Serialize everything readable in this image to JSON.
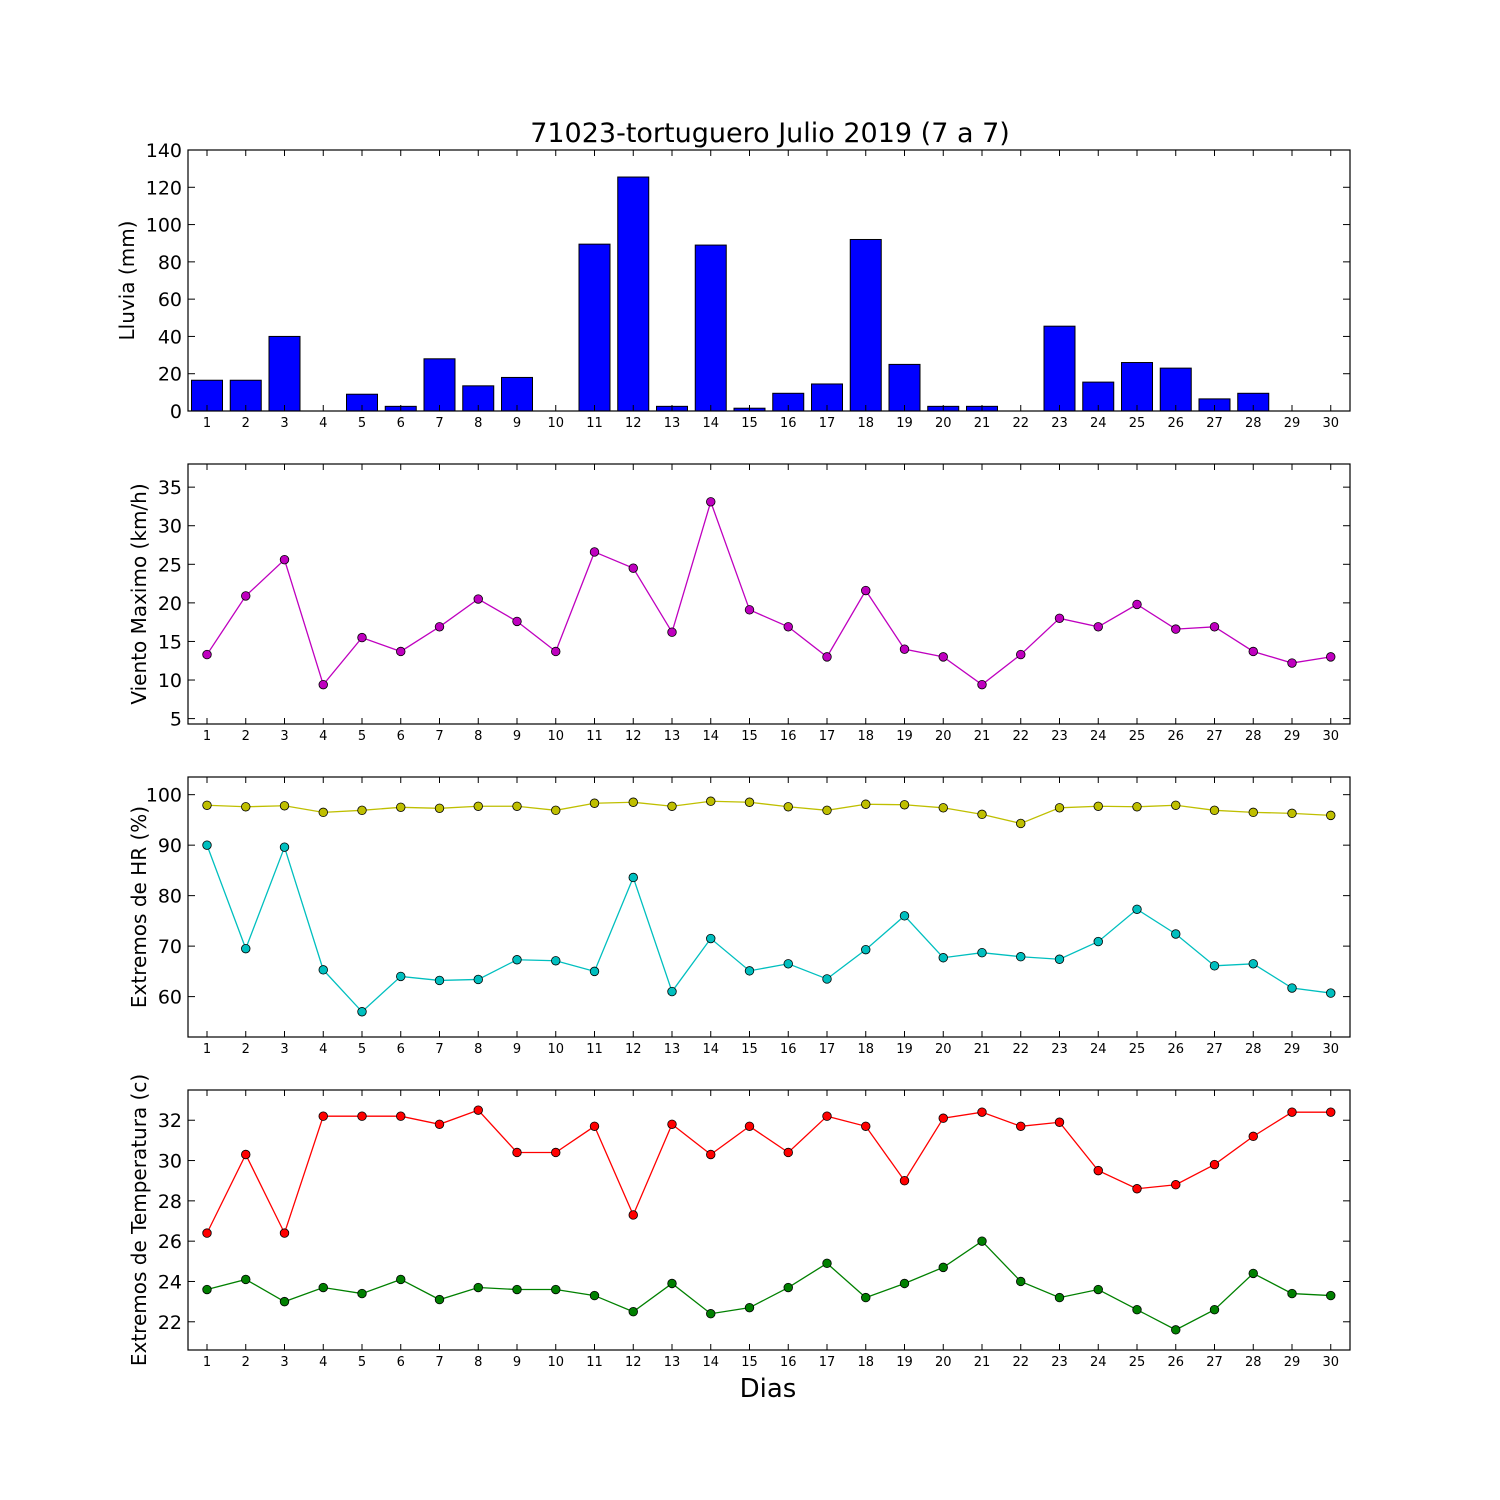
{
  "figure": {
    "title": "71023-tortuguero Julio 2019  (7 a 7)",
    "xlabel": "Dias"
  },
  "chart_data": [
    {
      "type": "bar",
      "ylabel": "Lluvia (mm)",
      "ylim": [
        0,
        140
      ],
      "yticks": [
        0,
        20,
        40,
        60,
        80,
        100,
        120,
        140
      ],
      "categories": [
        1,
        2,
        3,
        4,
        5,
        6,
        7,
        8,
        9,
        10,
        11,
        12,
        13,
        14,
        15,
        16,
        17,
        18,
        19,
        20,
        21,
        22,
        23,
        24,
        25,
        26,
        27,
        28,
        29,
        30
      ],
      "series": [
        {
          "color": "#0000ff",
          "values": [
            16.5,
            16.5,
            40.0,
            0.0,
            9.0,
            2.5,
            28.0,
            13.5,
            18.0,
            0.0,
            89.5,
            125.5,
            2.5,
            89.0,
            1.5,
            9.5,
            14.5,
            92.0,
            25.0,
            2.5,
            2.5,
            0.0,
            45.5,
            15.5,
            26.0,
            23.0,
            6.5,
            9.5,
            0.0,
            0.0
          ]
        }
      ],
      "grid": false
    },
    {
      "type": "line",
      "ylabel": "Viento Maximo (km/h)",
      "ylim": [
        4.3,
        38
      ],
      "yticks": [
        5,
        10,
        15,
        20,
        25,
        30,
        35
      ],
      "categories": [
        1,
        2,
        3,
        4,
        5,
        6,
        7,
        8,
        9,
        10,
        11,
        12,
        13,
        14,
        15,
        16,
        17,
        18,
        19,
        20,
        21,
        22,
        23,
        24,
        25,
        26,
        27,
        28,
        29,
        30
      ],
      "series": [
        {
          "color": "#bf00bf",
          "values": [
            13.3,
            20.9,
            25.6,
            9.4,
            15.5,
            13.7,
            16.9,
            20.5,
            17.6,
            13.7,
            26.6,
            24.5,
            16.2,
            33.1,
            19.1,
            16.9,
            13.0,
            21.6,
            14.0,
            13.0,
            9.4,
            13.3,
            18.0,
            16.9,
            19.8,
            16.6,
            16.9,
            13.7,
            12.2,
            13.0
          ]
        }
      ],
      "grid": false
    },
    {
      "type": "line",
      "ylabel": "Extremos de HR (%)",
      "ylim": [
        52,
        103.5
      ],
      "yticks": [
        60,
        70,
        80,
        90,
        100
      ],
      "categories": [
        1,
        2,
        3,
        4,
        5,
        6,
        7,
        8,
        9,
        10,
        11,
        12,
        13,
        14,
        15,
        16,
        17,
        18,
        19,
        20,
        21,
        22,
        23,
        24,
        25,
        26,
        27,
        28,
        29,
        30
      ],
      "series": [
        {
          "color": "#bfbf00",
          "values": [
            97.9,
            97.6,
            97.8,
            96.5,
            96.9,
            97.5,
            97.3,
            97.7,
            97.7,
            96.9,
            98.3,
            98.5,
            97.7,
            98.7,
            98.5,
            97.6,
            96.9,
            98.1,
            98.0,
            97.4,
            96.1,
            94.3,
            97.4,
            97.7,
            97.6,
            97.9,
            96.9,
            96.5,
            96.3,
            95.9
          ]
        },
        {
          "color": "#00bfbf",
          "values": [
            90.0,
            69.5,
            89.6,
            65.3,
            57.0,
            64.0,
            63.2,
            63.4,
            67.3,
            67.1,
            65.0,
            83.6,
            61.0,
            71.5,
            65.1,
            66.5,
            63.5,
            69.3,
            76.0,
            67.7,
            68.7,
            67.9,
            67.4,
            70.9,
            77.3,
            72.4,
            66.1,
            66.5,
            61.7,
            60.7
          ]
        }
      ],
      "grid": false
    },
    {
      "type": "line",
      "ylabel": "Extremos de Temperatura (c)",
      "ylim": [
        20.6,
        33.5
      ],
      "yticks": [
        22,
        24,
        26,
        28,
        30,
        32
      ],
      "categories": [
        1,
        2,
        3,
        4,
        5,
        6,
        7,
        8,
        9,
        10,
        11,
        12,
        13,
        14,
        15,
        16,
        17,
        18,
        19,
        20,
        21,
        22,
        23,
        24,
        25,
        26,
        27,
        28,
        29,
        30
      ],
      "series": [
        {
          "color": "#ff0000",
          "values": [
            26.4,
            30.3,
            26.4,
            32.2,
            32.2,
            32.2,
            31.8,
            32.5,
            30.4,
            30.4,
            31.7,
            27.3,
            31.8,
            30.3,
            31.7,
            30.4,
            32.2,
            31.7,
            29.0,
            32.1,
            32.4,
            31.7,
            31.9,
            29.5,
            28.6,
            28.8,
            29.8,
            31.2,
            32.4,
            32.4
          ]
        },
        {
          "color": "#008000",
          "values": [
            23.6,
            24.1,
            23.0,
            23.7,
            23.4,
            24.1,
            23.1,
            23.7,
            23.6,
            23.6,
            23.3,
            22.5,
            23.9,
            22.4,
            22.7,
            23.7,
            24.9,
            23.2,
            23.9,
            24.7,
            26.0,
            24.0,
            23.2,
            23.6,
            22.6,
            21.6,
            22.6,
            24.4,
            23.4,
            23.3
          ]
        }
      ],
      "grid": false
    }
  ]
}
